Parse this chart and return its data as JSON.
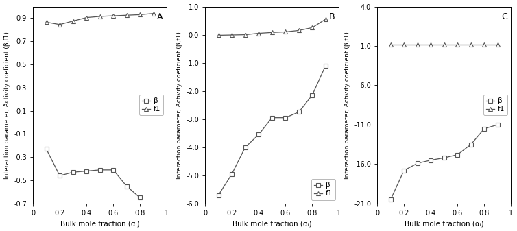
{
  "panel_A": {
    "title": "A",
    "beta_x": [
      0.1,
      0.2,
      0.3,
      0.4,
      0.5,
      0.6,
      0.7,
      0.8
    ],
    "beta_y": [
      -0.23,
      -0.46,
      -0.43,
      -0.42,
      -0.41,
      -0.41,
      -0.55,
      -0.65
    ],
    "f1_x": [
      0.1,
      0.2,
      0.3,
      0.4,
      0.5,
      0.6,
      0.7,
      0.8,
      0.9
    ],
    "f1_y": [
      0.865,
      0.845,
      0.875,
      0.905,
      0.915,
      0.92,
      0.925,
      0.93,
      0.94
    ],
    "xlim": [
      0,
      1
    ],
    "ylim": [
      -0.7,
      1.0
    ],
    "yticks": [
      -0.7,
      -0.5,
      -0.3,
      -0.1,
      0.1,
      0.3,
      0.5,
      0.7,
      0.9
    ],
    "ytick_labels": [
      "-0.7",
      "-0.5",
      "-0.3",
      "-0.1",
      "0.1",
      "0.3",
      "0.5",
      "0.7",
      "0.9"
    ],
    "xticks": [
      0,
      0.2,
      0.4,
      0.6,
      0.8,
      1
    ],
    "xtick_labels": [
      "0",
      "0.2",
      "0.4",
      "0.6",
      "0.8",
      "1"
    ],
    "legend_loc": "center right",
    "legend_bbox": null
  },
  "panel_B": {
    "title": "B",
    "beta_x": [
      0.1,
      0.2,
      0.3,
      0.4,
      0.5,
      0.6,
      0.7,
      0.8,
      0.9
    ],
    "beta_y": [
      -5.7,
      -4.95,
      -4.0,
      -3.55,
      -2.95,
      -2.95,
      -2.75,
      -2.15,
      -1.1
    ],
    "f1_x": [
      0.1,
      0.2,
      0.3,
      0.4,
      0.5,
      0.6,
      0.7,
      0.8,
      0.9
    ],
    "f1_y": [
      -0.02,
      -0.01,
      0.0,
      0.05,
      0.08,
      0.1,
      0.15,
      0.25,
      0.55
    ],
    "xlim": [
      0,
      1
    ],
    "ylim": [
      -6.0,
      1.0
    ],
    "yticks": [
      -6.0,
      -5.0,
      -4.0,
      -3.0,
      -2.0,
      -1.0,
      0.0,
      1.0
    ],
    "ytick_labels": [
      "-6.0",
      "-5.0",
      "-4.0",
      "-3.0",
      "-2.0",
      "-1.0",
      "0.0",
      "1.0"
    ],
    "xticks": [
      0,
      0.2,
      0.4,
      0.6,
      0.8,
      1
    ],
    "xtick_labels": [
      "0",
      "0.2",
      "0.4",
      "0.6",
      "0.8",
      "1"
    ],
    "legend_loc": "lower right",
    "legend_bbox": null
  },
  "panel_C": {
    "title": "C",
    "beta_x": [
      0.1,
      0.2,
      0.3,
      0.4,
      0.5,
      0.6,
      0.7,
      0.8,
      0.9
    ],
    "beta_y": [
      -20.5,
      -16.8,
      -15.9,
      -15.5,
      -15.2,
      -14.8,
      -13.5,
      -11.5,
      -11.0
    ],
    "f1_x": [
      0.1,
      0.2,
      0.3,
      0.4,
      0.5,
      0.6,
      0.7,
      0.8,
      0.9
    ],
    "f1_y": [
      -0.85,
      -0.85,
      -0.85,
      -0.85,
      -0.85,
      -0.85,
      -0.85,
      -0.85,
      -0.85
    ],
    "xlim": [
      0,
      1
    ],
    "ylim": [
      -21.0,
      4.0
    ],
    "yticks": [
      -21.0,
      -16.0,
      -11.0,
      -6.0,
      -1.0,
      4.0
    ],
    "ytick_labels": [
      "-21.0",
      "-16.0",
      "-11.0",
      "-6.0",
      "-1.0",
      "4.0"
    ],
    "xticks": [
      0,
      0.2,
      0.4,
      0.6,
      0.8,
      1
    ],
    "xtick_labels": [
      "0",
      "0.2",
      "0.4",
      "0.6",
      "0.8",
      "1"
    ],
    "legend_loc": "center right",
    "legend_bbox": null
  },
  "line_color": "#555555",
  "marker_beta": "s",
  "marker_f1": "^",
  "markersize": 4.5,
  "linewidth": 0.9,
  "legend_beta": "β",
  "legend_f1": "f1",
  "bg_color": "#ffffff",
  "xlabel": "Bulk mole fraction (αᵢ)",
  "ylabel": "Interaction parameter, Activity coeficient (β,f1)"
}
